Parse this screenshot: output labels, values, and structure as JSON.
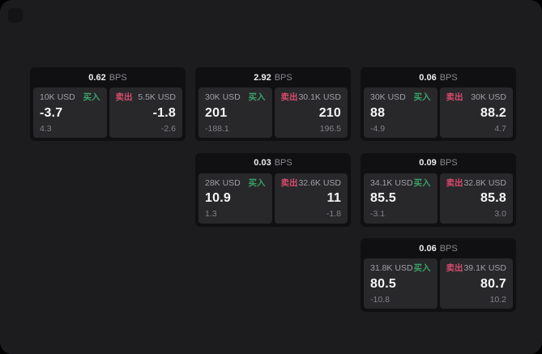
{
  "colors": {
    "buy_green": "#3aa065",
    "sell_red": "#d64b6d",
    "page_bg": "#1c1c1e",
    "card_bg": "#101012",
    "panel_bg": "#28282b"
  },
  "labels": {
    "bps_unit": "BPS",
    "buy": "买入",
    "sell": "卖出"
  },
  "cards": [
    {
      "bps": "0.62",
      "buy": {
        "amount": "10K USD",
        "price": "-3.7",
        "delta": "4.3"
      },
      "sell": {
        "amount": "5.5K USD",
        "price": "-1.8",
        "delta": "-2.6"
      }
    },
    {
      "bps": "2.92",
      "buy": {
        "amount": "30K USD",
        "price": "201",
        "delta": "-188.1"
      },
      "sell": {
        "amount": "30.1K USD",
        "price": "210",
        "delta": "196.5"
      }
    },
    {
      "bps": "0.06",
      "buy": {
        "amount": "30K USD",
        "price": "88",
        "delta": "-4.9"
      },
      "sell": {
        "amount": "30K USD",
        "price": "88.2",
        "delta": "4.7"
      }
    },
    {
      "bps": "0.03",
      "buy": {
        "amount": "28K USD",
        "price": "10.9",
        "delta": "1.3"
      },
      "sell": {
        "amount": "32.6K USD",
        "price": "11",
        "delta": "-1.8"
      }
    },
    {
      "bps": "0.09",
      "buy": {
        "amount": "34.1K USD",
        "price": "85.5",
        "delta": "-3.1"
      },
      "sell": {
        "amount": "32.8K USD",
        "price": "85.8",
        "delta": "3.0"
      }
    },
    {
      "bps": "0.06",
      "buy": {
        "amount": "31.8K USD",
        "price": "80.5",
        "delta": "-10.8"
      },
      "sell": {
        "amount": "39.1K USD",
        "price": "80.7",
        "delta": "10.2"
      }
    }
  ]
}
